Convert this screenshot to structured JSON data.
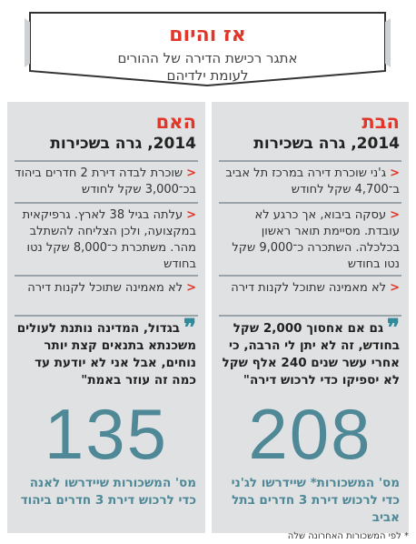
{
  "banner": {
    "title": "אז והיום",
    "subtitle_line1": "אתגר רכישת הדירה של ההורים",
    "subtitle_line2": "לעומת ילדיהם"
  },
  "right_column": {
    "header": "הבת",
    "subheader": "2014, גרה בשכירות",
    "items": [
      "ג'ני שוכרת דירה במרכז תל אביב ב־4,700 שקל לחודש",
      "עסקה ביבוא, אך כרגע לא עובדת. מסיימת תואר ראשון בכלכלה. השתכרה כ־9,000 שקל נטו בחודש",
      "לא מאמינה שתוכל לקנות דירה"
    ],
    "quote": "גם אם אחסוך 2,000 שקל בחודש, זה לא יתן לי הרבה, כי אחרי עשר שנים 240 אלף שקל לא יספיקו כדי לרכוש דירה\"",
    "big_number": "208",
    "number_caption": "מס' המשכורות* שיידרשו לג'ני כדי לרכוש דירת 3 חדרים בתל אביב"
  },
  "left_column": {
    "header": "האם",
    "subheader": "2014, גרה בשכירות",
    "items": [
      "שוכרת לבדה דירת 2 חדרים ביהוד בכ־3,000 שקל לחודש",
      "עלתה בגיל 38 לארץ. גרפיקאית במקצועה, ולכן הצליחה להשתלב מהר. משתכרת כ־8,000 שקל נטו בחודש",
      "לא מאמינה שתוכל לקנות דירה"
    ],
    "quote": "בגדול, המדינה נותנת לעולים משכנתא בתנאים קצת יותר נוחים, אבל אני לא יודעת עד כמה זה עוזר באמת\"",
    "big_number": "135",
    "number_caption": "מס' המשכורות שיידרשו לאנה כדי לרכוש דירת 3 חדרים ביהוד"
  },
  "footnote": "* לפי המשכורות האחרונה שלה",
  "colors": {
    "accent": "#e0372a",
    "teal": "#4f8896",
    "panel": "#dfe1e3"
  },
  "icons": {
    "bullet": "chevron-left-icon",
    "quote": "quote-icon"
  }
}
